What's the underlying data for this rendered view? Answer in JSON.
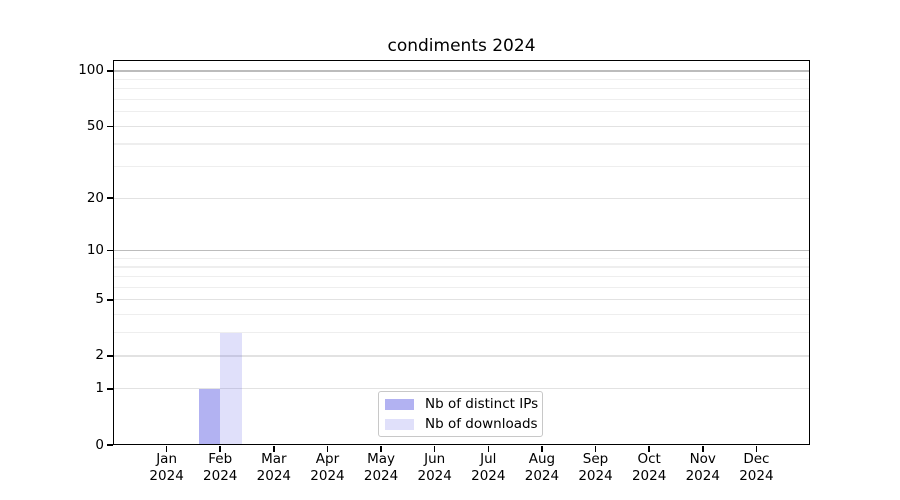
{
  "chart_data": {
    "type": "bar",
    "title": "condiments 2024",
    "x_categories": [
      "Jan",
      "Feb",
      "Mar",
      "Apr",
      "May",
      "Jun",
      "Jul",
      "Aug",
      "Sep",
      "Oct",
      "Nov",
      "Dec"
    ],
    "x_year": "2024",
    "series": [
      {
        "name": "Nb of distinct IPs",
        "color": "#6666e5",
        "alpha": 0.5,
        "values": [
          0,
          1,
          0,
          0,
          0,
          0,
          0,
          0,
          0,
          0,
          0,
          0
        ]
      },
      {
        "name": "Nb of downloads",
        "color": "#6666e5",
        "alpha": 0.2,
        "values": [
          0,
          3,
          0,
          0,
          0,
          0,
          0,
          0,
          0,
          0,
          0,
          0
        ]
      }
    ],
    "y_scale": "log10(1+y)",
    "y_ticks": [
      0,
      1,
      2,
      5,
      10,
      20,
      50,
      100
    ],
    "y_axis_top_value": 113,
    "gridlines": {
      "emphasis": [
        10,
        100
      ],
      "major": [
        1,
        2,
        5,
        20,
        50
      ],
      "minor": [
        3,
        4,
        6,
        7,
        8,
        9,
        30,
        40,
        60,
        70,
        80,
        90
      ]
    },
    "legend": {
      "position": "lower center"
    },
    "grid": "on",
    "background_color": "#ffffff"
  }
}
